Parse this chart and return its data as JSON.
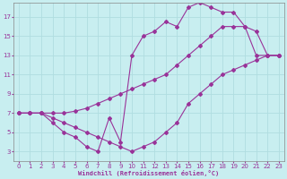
{
  "title": "",
  "xlabel": "Windchill (Refroidissement éolien,°C)",
  "bg_color": "#c8eef0",
  "grid_color": "#b0dde0",
  "line_color": "#993399",
  "marker": "D",
  "markersize": 2.0,
  "linewidth": 0.8,
  "xlim": [
    -0.5,
    23.5
  ],
  "ylim": [
    2,
    18.5
  ],
  "xticks": [
    0,
    1,
    2,
    3,
    4,
    5,
    6,
    7,
    8,
    9,
    10,
    11,
    12,
    13,
    14,
    15,
    16,
    17,
    18,
    19,
    20,
    21,
    22,
    23
  ],
  "yticks": [
    3,
    5,
    7,
    9,
    11,
    13,
    15,
    17
  ],
  "line1_x": [
    0,
    1,
    2,
    3,
    4,
    5,
    6,
    7,
    8,
    9,
    10,
    11,
    12,
    13,
    14,
    15,
    16,
    17,
    18,
    19,
    20,
    21,
    22,
    23
  ],
  "line1_y": [
    7,
    7,
    7,
    6,
    5,
    4.5,
    3.5,
    3,
    6.5,
    4,
    13,
    15,
    15.5,
    16.5,
    16,
    18,
    18.5,
    18,
    17.5,
    17.5,
    16,
    13,
    13,
    13
  ],
  "line2_x": [
    0,
    1,
    2,
    3,
    4,
    5,
    6,
    7,
    8,
    9,
    10,
    11,
    12,
    13,
    14,
    15,
    16,
    17,
    18,
    19,
    20,
    21,
    22,
    23
  ],
  "line2_y": [
    7,
    7,
    7,
    6.5,
    6,
    5.5,
    5,
    4.5,
    4,
    3.5,
    3,
    3.5,
    4,
    5,
    6,
    8,
    9,
    10,
    11,
    11.5,
    12,
    12.5,
    13,
    13
  ],
  "line3_x": [
    0,
    1,
    2,
    3,
    4,
    5,
    6,
    7,
    8,
    9,
    10,
    11,
    12,
    13,
    14,
    15,
    16,
    17,
    18,
    19,
    20,
    21,
    22,
    23
  ],
  "line3_y": [
    7,
    7,
    7,
    7,
    7,
    7.2,
    7.5,
    8,
    8.5,
    9,
    9.5,
    10,
    10.5,
    11,
    12,
    13,
    14,
    15,
    16,
    16,
    16,
    15.5,
    13,
    13
  ]
}
